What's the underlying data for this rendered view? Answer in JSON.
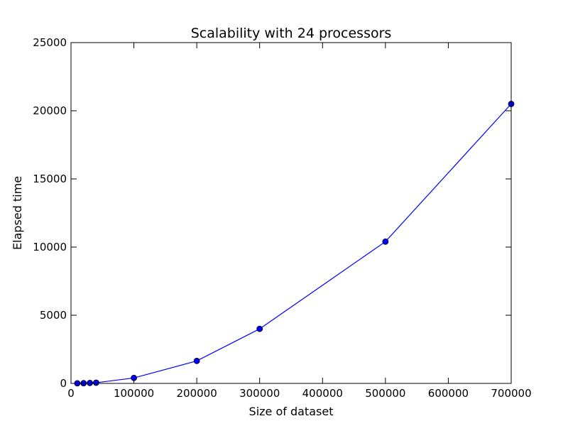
{
  "chart_data": {
    "type": "line",
    "title": "Scalability with 24 processors",
    "xlabel": "Size of dataset",
    "ylabel": "Elapsed time",
    "xlim": [
      0,
      700000
    ],
    "ylim": [
      0,
      25000
    ],
    "xticks": [
      0,
      100000,
      200000,
      300000,
      400000,
      500000,
      600000,
      700000
    ],
    "yticks": [
      0,
      5000,
      10000,
      15000,
      20000,
      25000
    ],
    "grid": false,
    "legend": "none",
    "series": [
      {
        "color": "#0000ff",
        "marker": "circle",
        "x": [
          10000,
          20000,
          30000,
          40000,
          100000,
          200000,
          300000,
          500000,
          700000
        ],
        "y": [
          5,
          15,
          30,
          50,
          400,
          1650,
          4000,
          10400,
          20500
        ]
      }
    ]
  }
}
